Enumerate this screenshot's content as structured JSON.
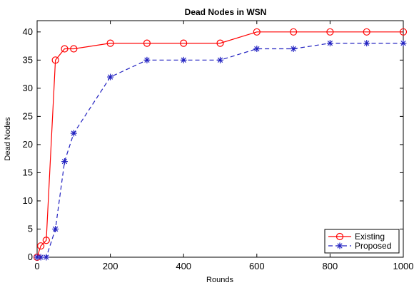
{
  "chart_data": {
    "type": "line",
    "title": "Dead Nodes in WSN",
    "xlabel": "Rounds",
    "ylabel": "Dead Nodes",
    "xlim": [
      0,
      1000
    ],
    "ylim": [
      0,
      42
    ],
    "xticks": [
      0,
      200,
      400,
      600,
      800,
      1000
    ],
    "yticks": [
      0,
      5,
      10,
      15,
      20,
      25,
      30,
      35,
      40
    ],
    "grid": false,
    "legend_position": "bottom-right",
    "series": [
      {
        "name": "Existing",
        "color": "#ff0000",
        "line_style": "solid",
        "marker": "circle",
        "x": [
          0,
          10,
          25,
          50,
          75,
          100,
          200,
          300,
          400,
          500,
          600,
          700,
          800,
          900,
          1000
        ],
        "values": [
          0,
          2,
          3,
          35,
          37,
          37,
          38,
          38,
          38,
          38,
          40,
          40,
          40,
          40,
          40
        ]
      },
      {
        "name": "Proposed",
        "color": "#2020c0",
        "line_style": "dashed",
        "marker": "star",
        "x": [
          0,
          10,
          25,
          50,
          75,
          100,
          200,
          300,
          400,
          500,
          600,
          700,
          800,
          900,
          1000
        ],
        "values": [
          0,
          0,
          0,
          5,
          17,
          22,
          32,
          35,
          35,
          35,
          37,
          37,
          38,
          38,
          38
        ]
      }
    ]
  }
}
